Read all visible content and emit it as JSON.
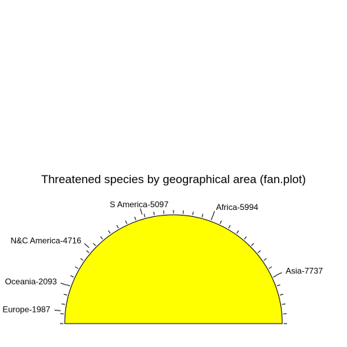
{
  "chart_data": {
    "type": "fan",
    "title": "Threatened species by geographical area (fan.plot)",
    "categories": [
      "Europe",
      "Oceania",
      "N&C America",
      "S America",
      "Africa",
      "Asia"
    ],
    "values": [
      1987,
      2093,
      4716,
      5097,
      5994,
      7737
    ],
    "labels": [
      "Europe-1987",
      "Oceania-2093",
      "N&C America-4716",
      "S America-5097",
      "Africa-5994",
      "Asia-7737"
    ],
    "colors": [
      "#00ff00",
      "#ff00ff",
      "#00ffff",
      "#0000ff",
      "#ff0000",
      "#ffff00"
    ],
    "outline_color": "#000000",
    "tick_marks": true
  }
}
